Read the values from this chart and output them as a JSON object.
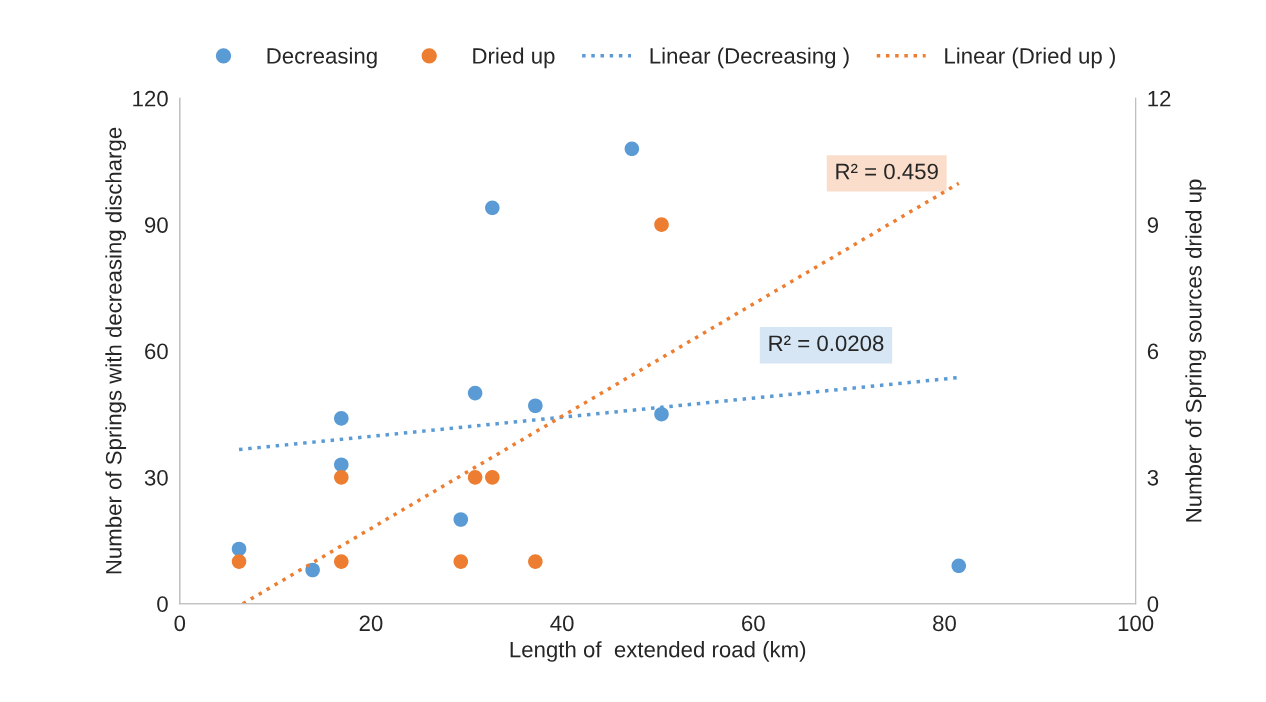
{
  "chart_data": {
    "type": "scatter",
    "xlabel": "Length of  extended road (km)",
    "ylabel": "Number of Springs with decreasing discharge",
    "y2label": "Number of Spring sources dried up",
    "xlim": [
      0,
      100
    ],
    "xticks": [
      0,
      20,
      40,
      60,
      80,
      100
    ],
    "ylim": [
      0,
      120
    ],
    "yticks": [
      0,
      30,
      60,
      90,
      120
    ],
    "y2lim": [
      0,
      12
    ],
    "y2ticks": [
      0,
      3,
      6,
      9,
      12
    ],
    "grid": false,
    "legend": "top",
    "marker": "circle",
    "series": [
      {
        "name": "Decreasing",
        "color": "#5b9bd5",
        "x": [
          6.2,
          13.9,
          16.9,
          16.9,
          29.4,
          30.9,
          32.7,
          37.2,
          47.3,
          50.4,
          81.5
        ],
        "values": [
          13,
          8,
          44,
          33,
          20,
          50,
          94,
          47,
          108,
          45,
          9
        ]
      },
      {
        "name": "Dried up",
        "axis": "y2",
        "color": "#ed7d31",
        "x": [
          6.2,
          16.9,
          16.9,
          29.4,
          30.9,
          32.7,
          37.2,
          50.4
        ],
        "values": [
          1,
          1,
          3,
          1,
          3,
          3,
          1,
          9
        ]
      },
      {
        "name": "Linear (Decreasing )",
        "type": "line",
        "line_style": "dotted",
        "marker": "none",
        "color": "#5b9bd5",
        "x": [
          6.2,
          81.5
        ],
        "values": [
          36.6,
          53.7
        ]
      },
      {
        "name": "Linear (Dried up )",
        "type": "line",
        "line_style": "dotted",
        "marker": "none",
        "axis": "y2",
        "color": "#ed7d31",
        "x": [
          6.6,
          81.5
        ],
        "values": [
          0,
          9.98
        ]
      }
    ],
    "annotations": [
      "R² = 0.459",
      "R² = 0.0208"
    ]
  }
}
